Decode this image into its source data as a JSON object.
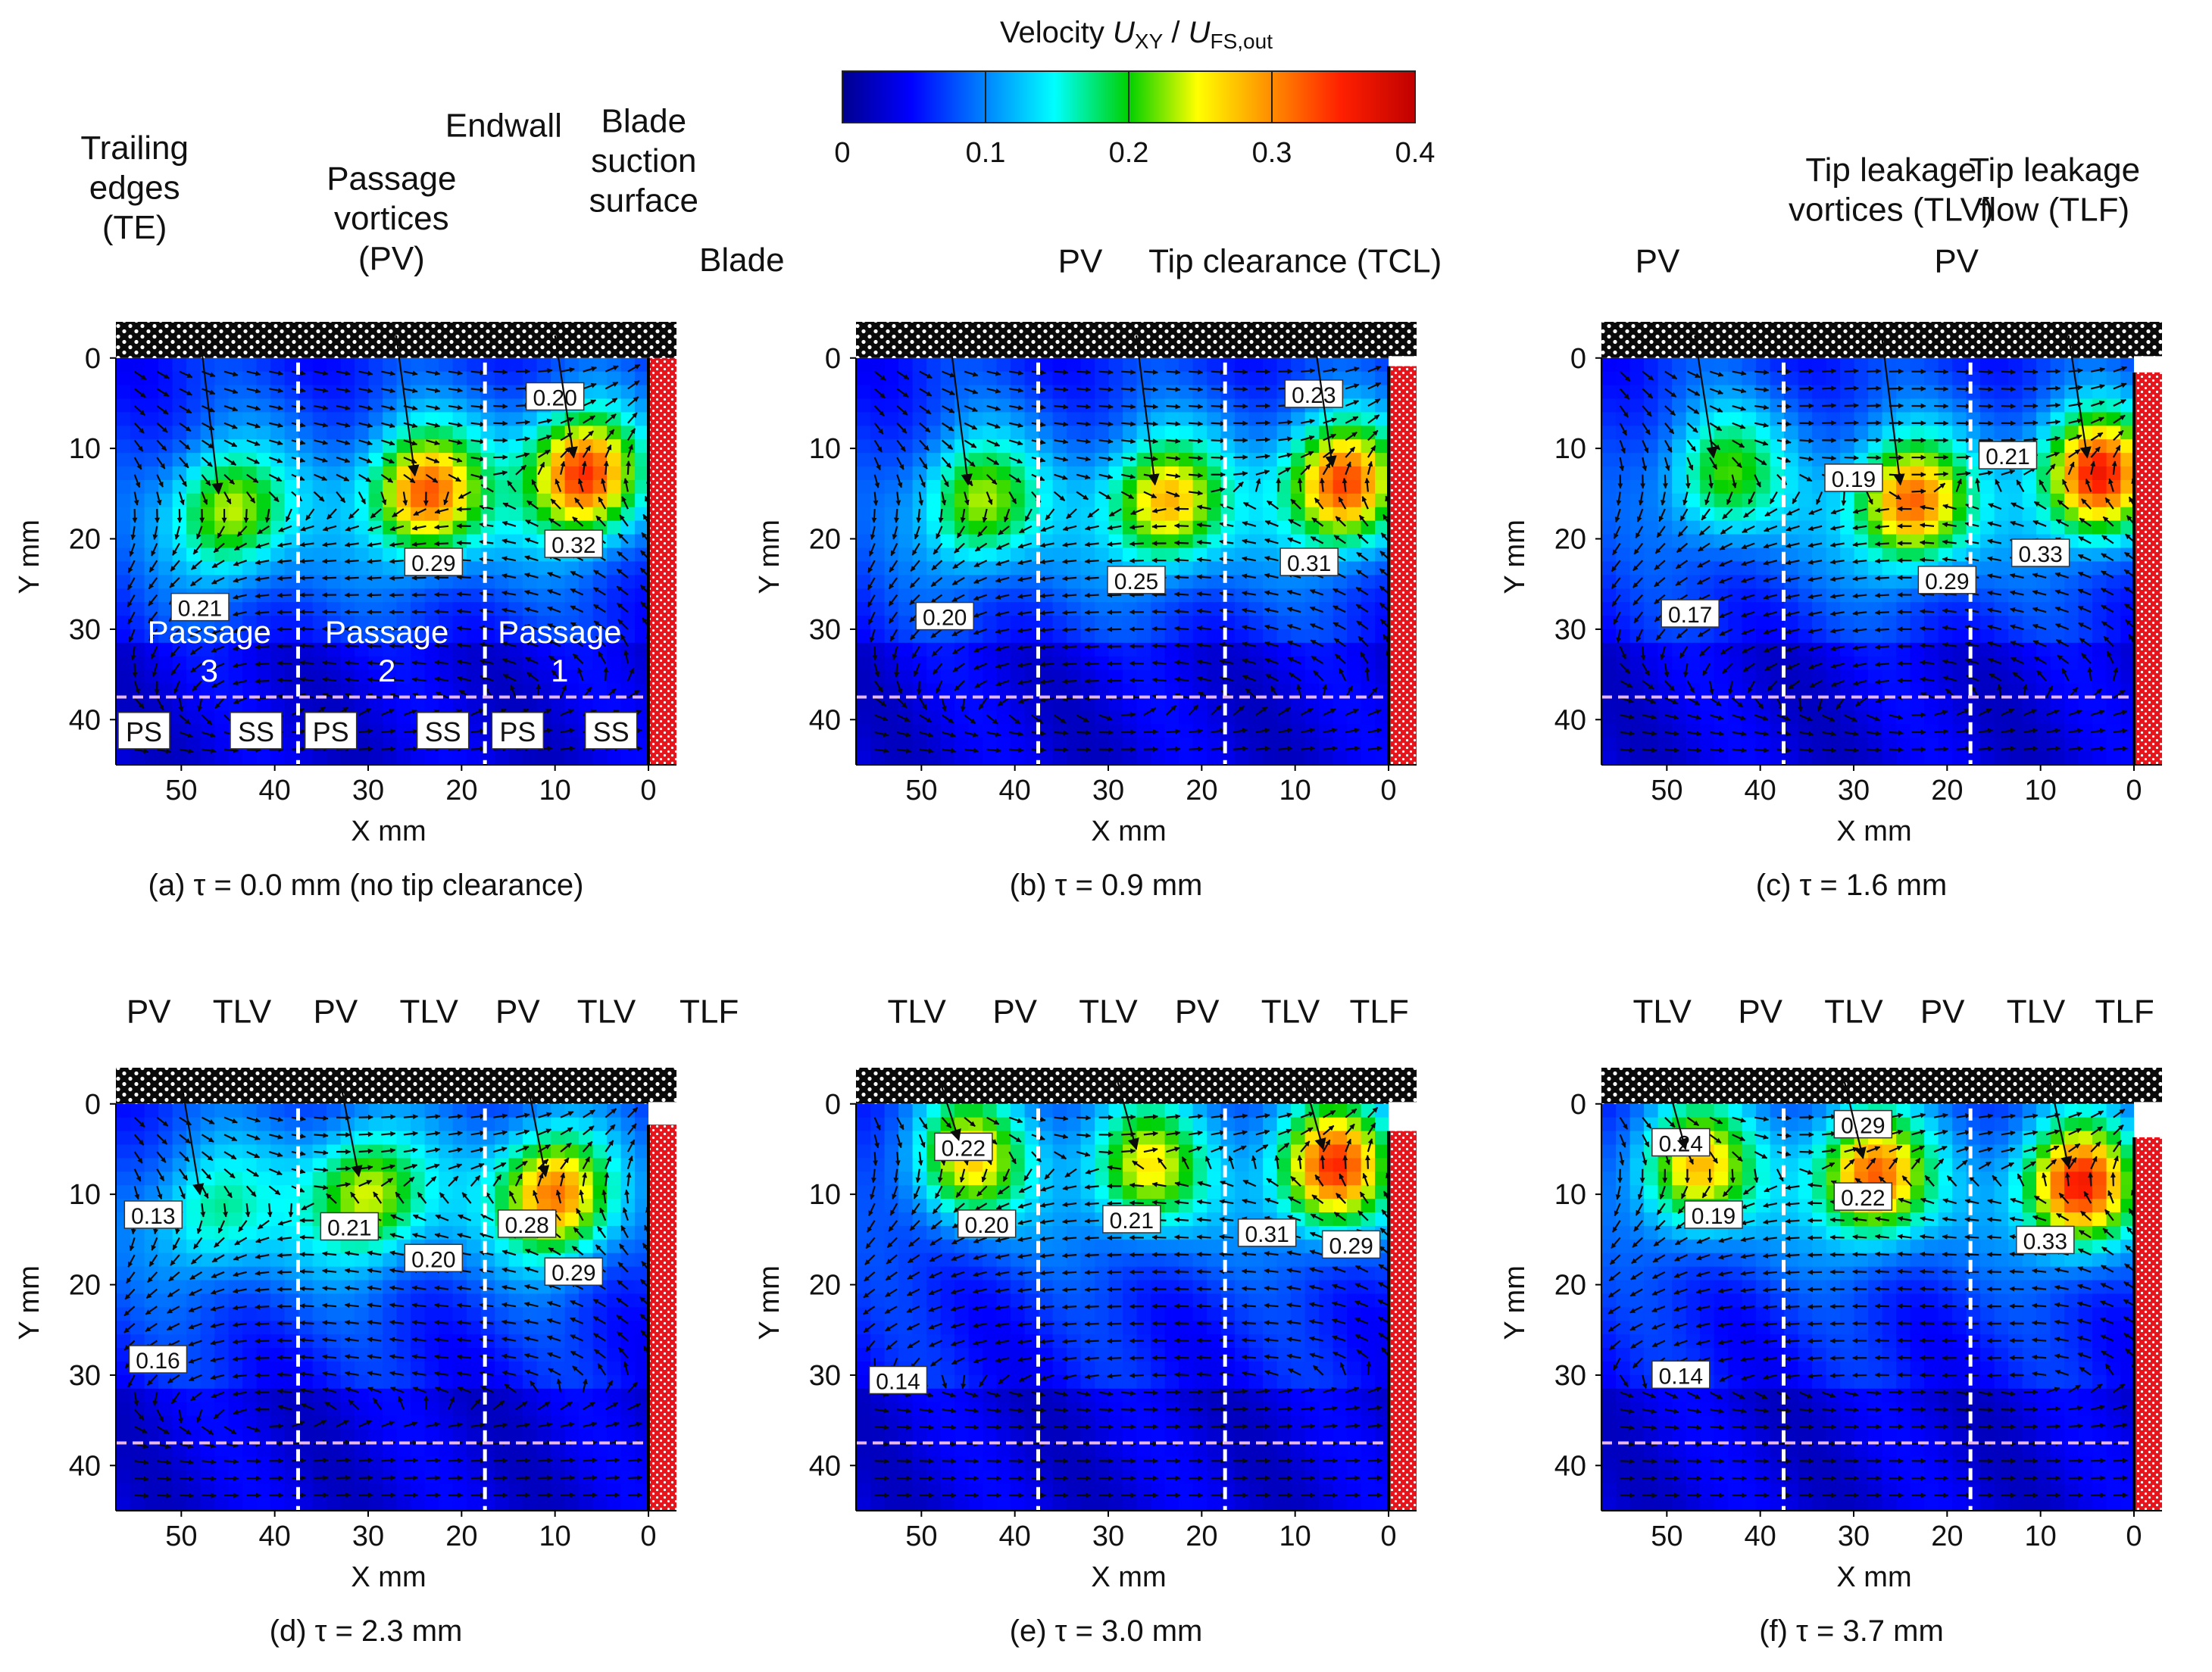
{
  "chart_data": {
    "type": "heatmap",
    "colorbar": {
      "title_prefix": "Velocity ",
      "title_var": "U",
      "title_num_sub": "XY",
      "title_slash": " / ",
      "title_den_sub": "FS,out",
      "range": [
        0,
        0.4
      ],
      "ticks": [
        "0",
        "0.1",
        "0.2",
        "0.3",
        "0.4"
      ],
      "tick_values": [
        0,
        0.1,
        0.2,
        0.3,
        0.4
      ]
    },
    "x_axis": {
      "label": "X mm",
      "range": [
        57,
        -3
      ],
      "ticks": [
        "50",
        "40",
        "30",
        "20",
        "10",
        "0"
      ],
      "tick_values": [
        50,
        40,
        30,
        20,
        10,
        0
      ]
    },
    "y_axis": {
      "label": "Y mm",
      "range": [
        -4,
        45
      ],
      "ticks": [
        "0",
        "10",
        "20",
        "30",
        "40"
      ],
      "tick_values": [
        0,
        10,
        20,
        30,
        40
      ]
    },
    "trailing_edges_x": [
      37.5,
      17.5
    ],
    "guide_line_y": 37.5,
    "panels": [
      {
        "caption": "(a) τ = 0.0 mm (no tip clearance)",
        "tau_mm": 0.0,
        "cores": [
          {
            "x": 45,
            "y": 17,
            "peak": 0.21
          },
          {
            "x": 24,
            "y": 15,
            "peak": 0.29
          },
          {
            "x": 7,
            "y": 13,
            "peak": 0.32
          }
        ],
        "value_labels": [
          {
            "text": "0.20",
            "x": 10,
            "y": 4.5
          },
          {
            "text": "0.32",
            "x": 8,
            "y": 20.8
          },
          {
            "text": "0.29",
            "x": 23,
            "y": 22.8
          },
          {
            "text": "0.21",
            "x": 48,
            "y": 27.8
          }
        ],
        "passage_labels": [
          {
            "name": "Passage",
            "num": "3",
            "x": 47
          },
          {
            "name": "Passage",
            "num": "2",
            "x": 28
          },
          {
            "name": "Passage",
            "num": "1",
            "x": 9.5
          }
        ],
        "side_labels": [
          {
            "text": "PS",
            "x": 54
          },
          {
            "text": "SS",
            "x": 42
          },
          {
            "text": "PS",
            "x": 34
          },
          {
            "text": "SS",
            "x": 22
          },
          {
            "text": "PS",
            "x": 14
          },
          {
            "text": "SS",
            "x": 4
          }
        ],
        "annotations": [
          {
            "text": "Trailing",
            "x": 55,
            "y": -22
          },
          {
            "text": "edges",
            "x": 55,
            "y": -17.6
          },
          {
            "text": "(TE)",
            "x": 55,
            "y": -13.2
          },
          {
            "text": "Passage",
            "x": 27.5,
            "y": -18.6
          },
          {
            "text": "vortices",
            "x": 27.5,
            "y": -14.2
          },
          {
            "text": "(PV)",
            "x": 27.5,
            "y": -9.8
          },
          {
            "text": "Endwall",
            "x": 15.5,
            "y": -24.5
          },
          {
            "text": "Blade",
            "x": 0.5,
            "y": -25
          },
          {
            "text": "suction",
            "x": 0.5,
            "y": -20.6
          },
          {
            "text": "surface",
            "x": 0.5,
            "y": -16.2
          },
          {
            "text": "Blade",
            "x": -10,
            "y": -9.6
          }
        ]
      },
      {
        "caption": "(b) τ = 0.9 mm",
        "tau_mm": 0.9,
        "cores": [
          {
            "x": 44,
            "y": 16,
            "peak": 0.2
          },
          {
            "x": 24,
            "y": 16,
            "peak": 0.25
          },
          {
            "x": 5,
            "y": 14,
            "peak": 0.31
          }
        ],
        "value_labels": [
          {
            "text": "0.23",
            "x": 8,
            "y": 4.2
          },
          {
            "text": "0.31",
            "x": 8.5,
            "y": 22.8
          },
          {
            "text": "0.25",
            "x": 27,
            "y": 24.8
          },
          {
            "text": "0.20",
            "x": 47.5,
            "y": 28.8
          }
        ],
        "annotations": [
          {
            "text": "PV",
            "x": 33,
            "y": -9.5
          },
          {
            "text": "Tip clearance (TCL)",
            "x": 10,
            "y": -9.5
          }
        ]
      },
      {
        "caption": "(c) τ = 1.6 mm",
        "tau_mm": 1.6,
        "cores": [
          {
            "x": 44,
            "y": 13,
            "peak": 0.17
          },
          {
            "x": 24,
            "y": 16,
            "peak": 0.29
          },
          {
            "x": 4,
            "y": 13,
            "peak": 0.33
          }
        ],
        "value_labels": [
          {
            "text": "0.21",
            "x": 13.5,
            "y": 11
          },
          {
            "text": "0.19",
            "x": 30,
            "y": 13.5
          },
          {
            "text": "0.33",
            "x": 10,
            "y": 21.8
          },
          {
            "text": "0.29",
            "x": 20,
            "y": 24.8
          },
          {
            "text": "0.17",
            "x": 47.5,
            "y": 28.5
          }
        ],
        "annotations": [
          {
            "text": "Tip leakage",
            "x": 26,
            "y": -19.6
          },
          {
            "text": "vortices (TLV)",
            "x": 26,
            "y": -15.2
          },
          {
            "text": "Tip leakage",
            "x": 8.5,
            "y": -19.6
          },
          {
            "text": "flow (TLF)",
            "x": 8.5,
            "y": -15.2
          },
          {
            "text": "PV",
            "x": 51,
            "y": -9.5
          },
          {
            "text": "PV",
            "x": 19,
            "y": -9.5
          }
        ]
      },
      {
        "caption": "(d) τ = 2.3 mm",
        "tau_mm": 2.3,
        "cores": [
          {
            "x": 47,
            "y": 12,
            "peak": 0.13
          },
          {
            "x": 30,
            "y": 10,
            "peak": 0.21
          },
          {
            "x": 10,
            "y": 10,
            "peak": 0.29
          }
        ],
        "value_labels": [
          {
            "text": "0.13",
            "x": 53,
            "y": 12.5
          },
          {
            "text": "0.21",
            "x": 32,
            "y": 13.8
          },
          {
            "text": "0.28",
            "x": 13,
            "y": 13.5
          },
          {
            "text": "0.20",
            "x": 23,
            "y": 17.3
          },
          {
            "text": "0.29",
            "x": 8,
            "y": 18.8
          },
          {
            "text": "0.16",
            "x": 52.5,
            "y": 28.5
          }
        ],
        "annotations": [
          {
            "text": "PV",
            "x": 53.5,
            "y": -9
          },
          {
            "text": "TLV",
            "x": 43.5,
            "y": -9
          },
          {
            "text": "PV",
            "x": 33.5,
            "y": -9
          },
          {
            "text": "TLV",
            "x": 23.5,
            "y": -9
          },
          {
            "text": "PV",
            "x": 14,
            "y": -9
          },
          {
            "text": "TLV",
            "x": 4.5,
            "y": -9
          },
          {
            "text": "TLF",
            "x": -6.5,
            "y": -9
          }
        ]
      },
      {
        "caption": "(e) τ = 3.0 mm",
        "tau_mm": 3.0,
        "cores": [
          {
            "x": 45,
            "y": 6,
            "peak": 0.22
          },
          {
            "x": 26,
            "y": 7,
            "peak": 0.21
          },
          {
            "x": 6,
            "y": 7,
            "peak": 0.31
          }
        ],
        "value_labels": [
          {
            "text": "0.22",
            "x": 45.5,
            "y": 5
          },
          {
            "text": "0.20",
            "x": 43,
            "y": 13.5
          },
          {
            "text": "0.21",
            "x": 27.5,
            "y": 13
          },
          {
            "text": "0.31",
            "x": 13,
            "y": 14.5
          },
          {
            "text": "0.29",
            "x": 4,
            "y": 15.8
          },
          {
            "text": "0.14",
            "x": 52.5,
            "y": 30.8
          }
        ],
        "annotations": [
          {
            "text": "TLV",
            "x": 50.5,
            "y": -9
          },
          {
            "text": "PV",
            "x": 40,
            "y": -9
          },
          {
            "text": "TLV",
            "x": 30,
            "y": -9
          },
          {
            "text": "PV",
            "x": 20.5,
            "y": -9
          },
          {
            "text": "TLV",
            "x": 10.5,
            "y": -9
          },
          {
            "text": "TLF",
            "x": 1,
            "y": -9
          }
        ]
      },
      {
        "caption": "(f) τ = 3.7 mm",
        "tau_mm": 3.7,
        "cores": [
          {
            "x": 47,
            "y": 7,
            "peak": 0.24
          },
          {
            "x": 28,
            "y": 8,
            "peak": 0.29
          },
          {
            "x": 6,
            "y": 9,
            "peak": 0.33
          }
        ],
        "value_labels": [
          {
            "text": "0.29",
            "x": 29,
            "y": 2.5
          },
          {
            "text": "0.24",
            "x": 48.5,
            "y": 4.5
          },
          {
            "text": "0.22",
            "x": 29,
            "y": 10.5
          },
          {
            "text": "0.19",
            "x": 45,
            "y": 12.5
          },
          {
            "text": "0.33",
            "x": 9.5,
            "y": 15.3
          },
          {
            "text": "0.14",
            "x": 48.5,
            "y": 30.2
          }
        ],
        "annotations": [
          {
            "text": "TLV",
            "x": 50.5,
            "y": -9
          },
          {
            "text": "PV",
            "x": 40,
            "y": -9
          },
          {
            "text": "TLV",
            "x": 30,
            "y": -9
          },
          {
            "text": "PV",
            "x": 20.5,
            "y": -9
          },
          {
            "text": "TLV",
            "x": 10.5,
            "y": -9
          },
          {
            "text": "TLF",
            "x": 1,
            "y": -9
          }
        ]
      }
    ]
  }
}
